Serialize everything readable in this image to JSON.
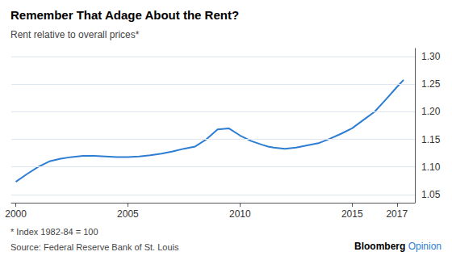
{
  "chart_data": {
    "type": "line",
    "title": "Remember That Adage About the Rent?",
    "subtitle": "Rent relative to overall prices*",
    "footnote": "* Index 1982-84 = 100",
    "source": "Source: Federal Reserve Bank of St. Louis",
    "annotations": [
      {
        "text": "Bloomberg",
        "color": "#000000"
      },
      {
        "text": "Opinion",
        "color": "#2D7DD2"
      }
    ],
    "color": "#2D7DD2",
    "grid": true,
    "xlim": [
      1999.8,
      2017.8
    ],
    "ylim": [
      1.035,
      1.315
    ],
    "xticks": [
      2000,
      2005,
      2010,
      2015,
      2017
    ],
    "yticks": [
      1.05,
      {
        "value": 1.1,
        "label": "1.10"
      },
      1.15,
      {
        "value": 1.2,
        "label": "1.20"
      },
      1.25,
      {
        "value": 1.3,
        "label": "1.30"
      }
    ],
    "x": [
      2000.0,
      2000.5,
      2001.0,
      2001.5,
      2002.0,
      2002.5,
      2003.0,
      2003.5,
      2004.0,
      2004.5,
      2005.0,
      2005.5,
      2006.0,
      2006.5,
      2007.0,
      2007.5,
      2008.0,
      2008.5,
      2009.0,
      2009.5,
      2010.0,
      2010.5,
      2011.0,
      2011.25,
      2011.5,
      2012.0,
      2012.5,
      2013.0,
      2013.5,
      2014.0,
      2014.5,
      2015.0,
      2015.5,
      2016.0,
      2016.5,
      2017.0,
      2017.3
    ],
    "values": [
      1.073,
      1.087,
      1.1,
      1.11,
      1.115,
      1.118,
      1.12,
      1.12,
      1.119,
      1.118,
      1.118,
      1.119,
      1.121,
      1.124,
      1.128,
      1.133,
      1.137,
      1.15,
      1.168,
      1.17,
      1.157,
      1.147,
      1.14,
      1.137,
      1.135,
      1.133,
      1.135,
      1.139,
      1.143,
      1.151,
      1.16,
      1.17,
      1.185,
      1.2,
      1.222,
      1.245,
      1.258
    ]
  }
}
